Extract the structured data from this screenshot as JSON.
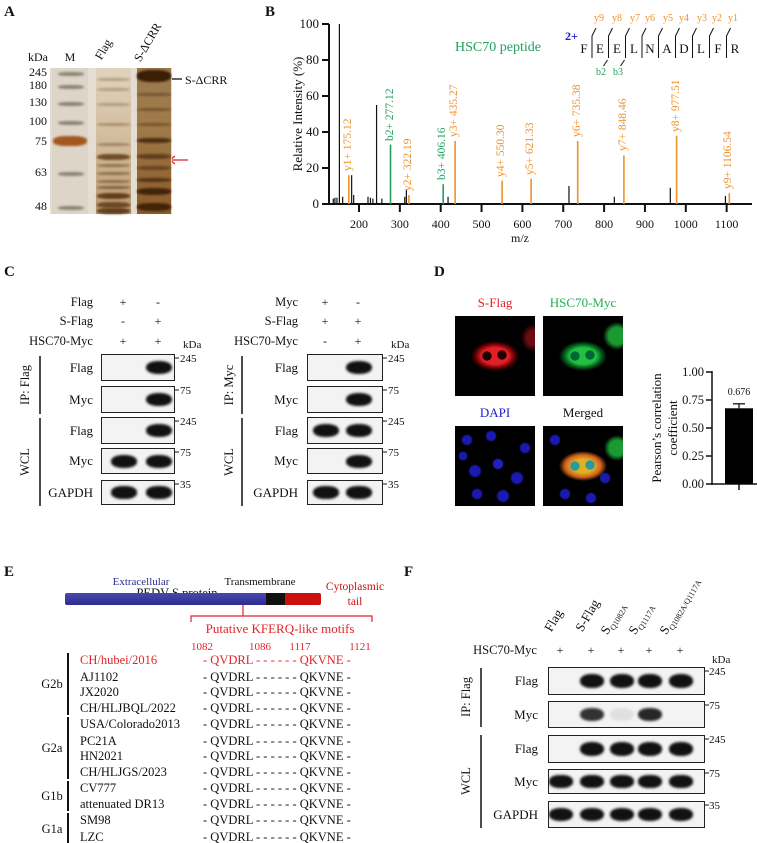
{
  "panel_labels": {
    "a": "A",
    "b": "B",
    "c": "C",
    "d": "D",
    "e": "E",
    "f": "F"
  },
  "panel_a": {
    "kda_label": "kDa",
    "lanes": [
      "M",
      "Flag",
      "S-ΔCRR"
    ],
    "markers": [
      "245",
      "180",
      "130",
      "100",
      "75",
      "63",
      "48"
    ],
    "arrow_label": "S-ΔCRR",
    "arrow_color": "#111111",
    "candidate_arrow_color": "#e0242b"
  },
  "panel_b": {
    "peptide_title": "HSC70 peptide",
    "charge": "2+",
    "sequence": [
      "F",
      "E",
      "E",
      "L",
      "N",
      "A",
      "D",
      "L",
      "F",
      "R"
    ],
    "y_ions": [
      "y9",
      "y8",
      "y7",
      "y6",
      "y5",
      "y4",
      "y3",
      "y2",
      "y1"
    ],
    "b_ions": [
      "b2",
      "b3"
    ],
    "colors": {
      "y_ion": "#f0902a",
      "b_ion": "#20a060",
      "charge": "#1a1ad0",
      "title": "#20a060"
    }
  },
  "chart_data": [
    {
      "type": "bar",
      "subtype": "ms2-stick-spectrum",
      "title": "HSC70 peptide",
      "xlabel": "m/z",
      "ylabel": "Relative  Intensity (%)",
      "xlim": [
        130,
        1180
      ],
      "ylim": [
        0,
        100
      ],
      "xticks": [
        "200",
        "300",
        "400",
        "500",
        "600",
        "700",
        "800",
        "900",
        "1000",
        "1100"
      ],
      "yticks": [
        "0",
        "20",
        "40",
        "60",
        "80",
        "100"
      ],
      "annotated_peaks": [
        {
          "mz": 175.12,
          "intensity": 16,
          "ion": "y",
          "label": "y1+ 175.12"
        },
        {
          "mz": 277.12,
          "intensity": 33,
          "ion": "b",
          "label": "b2+ 277.12"
        },
        {
          "mz": 322.19,
          "intensity": 5,
          "ion": "y",
          "label": "y2+ 322.19"
        },
        {
          "mz": 406.16,
          "intensity": 11,
          "ion": "b",
          "label": "b3+ 406.16"
        },
        {
          "mz": 435.27,
          "intensity": 35,
          "ion": "y",
          "label": "y3+ 435.27"
        },
        {
          "mz": 550.3,
          "intensity": 13,
          "ion": "y",
          "label": "y4+ 550.30"
        },
        {
          "mz": 621.33,
          "intensity": 14,
          "ion": "y",
          "label": "y5+ 621.33"
        },
        {
          "mz": 735.38,
          "intensity": 35,
          "ion": "y",
          "label": "y6+ 735.38"
        },
        {
          "mz": 848.46,
          "intensity": 27,
          "ion": "y",
          "label": "y7+ 848.46"
        },
        {
          "mz": 977.51,
          "intensity": 38,
          "ion": "y",
          "label": "y8+ 977.51"
        },
        {
          "mz": 1106.54,
          "intensity": 6,
          "ion": "y",
          "label": "y9+ 1106.54"
        }
      ],
      "other_peaks": [
        {
          "mz": 137,
          "intensity": 3
        },
        {
          "mz": 141,
          "intensity": 3.5
        },
        {
          "mz": 146,
          "intensity": 3.5
        },
        {
          "mz": 152,
          "intensity": 100
        },
        {
          "mz": 160,
          "intensity": 4
        },
        {
          "mz": 182,
          "intensity": 16
        },
        {
          "mz": 187,
          "intensity": 5
        },
        {
          "mz": 222,
          "intensity": 4
        },
        {
          "mz": 228,
          "intensity": 3.5
        },
        {
          "mz": 234,
          "intensity": 3
        },
        {
          "mz": 243,
          "intensity": 55
        },
        {
          "mz": 256,
          "intensity": 3
        },
        {
          "mz": 312,
          "intensity": 4
        },
        {
          "mz": 316,
          "intensity": 8
        },
        {
          "mz": 418,
          "intensity": 4
        },
        {
          "mz": 714,
          "intensity": 10
        },
        {
          "mz": 825,
          "intensity": 4
        },
        {
          "mz": 962,
          "intensity": 9
        },
        {
          "mz": 1097,
          "intensity": 4.5
        }
      ],
      "grid": false
    },
    {
      "type": "bar",
      "title": "",
      "categories": [
        ""
      ],
      "values": [
        0.676
      ],
      "error": [
        0.04
      ],
      "data_labels": [
        "0.676"
      ],
      "xlabel": "",
      "ylabel": "Pearson’s correlation coefficient",
      "ylabel_lines": [
        "Pearson’s correlation",
        "coefficient"
      ],
      "ylim": [
        0,
        1
      ],
      "yticks": [
        "0.00",
        "0.25",
        "0.50",
        "0.75",
        "1.00"
      ],
      "grid": false
    }
  ],
  "panel_c": {
    "kda_label": "kDa",
    "left": {
      "conditions": [
        {
          "label": "Flag",
          "signs": [
            "+",
            "-"
          ]
        },
        {
          "label": "S-Flag",
          "signs": [
            "-",
            "+"
          ]
        },
        {
          "label": "HSC70-Myc",
          "signs": [
            "+",
            "+"
          ]
        }
      ],
      "groups": [
        {
          "label": "IP: Flag"
        },
        {
          "label": "WCL"
        }
      ],
      "rows": [
        {
          "label": "Flag",
          "marker": "245",
          "bands": [
            0,
            1
          ]
        },
        {
          "label": "Myc",
          "marker": "75",
          "bands": [
            0,
            1
          ]
        },
        {
          "label": "Flag",
          "marker": "245",
          "bands": [
            0,
            1
          ]
        },
        {
          "label": "Myc",
          "marker": "75",
          "bands": [
            1,
            1
          ]
        },
        {
          "label": "GAPDH",
          "marker": "35",
          "bands": [
            1,
            1
          ]
        }
      ]
    },
    "right": {
      "conditions": [
        {
          "label": "Myc",
          "signs": [
            "+",
            "-"
          ]
        },
        {
          "label": "S-Flag",
          "signs": [
            "+",
            "+"
          ]
        },
        {
          "label": "HSC70-Myc",
          "signs": [
            "-",
            "+"
          ]
        }
      ],
      "groups": [
        {
          "label": "IP: Myc"
        },
        {
          "label": "WCL"
        }
      ],
      "rows": [
        {
          "label": "Flag",
          "marker": "245",
          "bands": [
            0,
            1
          ]
        },
        {
          "label": "Myc",
          "marker": "75",
          "bands": [
            0,
            1
          ]
        },
        {
          "label": "Flag",
          "marker": "245",
          "bands": [
            1,
            1
          ]
        },
        {
          "label": "Myc",
          "marker": "75",
          "bands": [
            0,
            1
          ]
        },
        {
          "label": "GAPDH",
          "marker": "35",
          "bands": [
            1,
            1
          ]
        }
      ]
    }
  },
  "panel_d": {
    "images": [
      {
        "label": "S-Flag",
        "color": "#e0242b"
      },
      {
        "label": "HSC70-Myc",
        "color": "#20b050"
      },
      {
        "label": "DAPI",
        "color": "#2020d0"
      },
      {
        "label": "Merged",
        "color": "#111111"
      }
    ]
  },
  "panel_e": {
    "title": "PEDV S protein",
    "domains": [
      {
        "label": "Extracellular",
        "color": "#2d2d8f"
      },
      {
        "label": "Transmembrane",
        "color": "#111111"
      },
      {
        "label": "Cytoplasmic",
        "label2": "tail",
        "color": "#cc1010"
      }
    ],
    "motif_label": "Putative KFERQ-like motifs",
    "positions": [
      "1082",
      "1086",
      "1117",
      "1121"
    ],
    "groups": [
      {
        "label": "G2b",
        "count": 4
      },
      {
        "label": "G2a",
        "count": 4
      },
      {
        "label": "G1b",
        "count": 2
      },
      {
        "label": "G1a",
        "count": 2
      }
    ],
    "strains": [
      {
        "name": "CH/hubei/2016",
        "seq": "- QVDRL - - - - - - QKVNE -",
        "highlight": true
      },
      {
        "name": "AJ1102",
        "seq": "- QVDRL - - - - - - QKVNE -"
      },
      {
        "name": "JX2020",
        "seq": "- QVDRL - - - - - - QKVNE -"
      },
      {
        "name": "CH/HLJBQL/2022",
        "seq": "- QVDRL - - - - - - QKVNE -"
      },
      {
        "name": "USA/Colorado2013",
        "seq": "- QVDRL - - - - - - QKVNE -"
      },
      {
        "name": "PC21A",
        "seq": "- QVDRL - - - - - - QKVNE -"
      },
      {
        "name": "HN2021",
        "seq": "- QVDRL - - - - - - QKVNE -"
      },
      {
        "name": "CH/HLJGS/2023",
        "seq": "- QVDRL - - - - - - QKVNE -"
      },
      {
        "name": "CV777",
        "seq": "- QVDRL - - - - - - QKVNE -"
      },
      {
        "name": "attenuated DR13",
        "seq": "- QVDRL - - - - - - QKVNE -"
      },
      {
        "name": "SM98",
        "seq": "- QVDRL - - - - - - QKVNE -"
      },
      {
        "name": "LZC",
        "seq": "- QVDRL - - - - - - QKVNE -"
      }
    ],
    "highlight_color": "#e0242b"
  },
  "panel_f": {
    "kda_label": "kDa",
    "columns": [
      {
        "main": "Flag",
        "sub": ""
      },
      {
        "main": "S-Flag",
        "sub": ""
      },
      {
        "main": "S",
        "sub": "Q1082A"
      },
      {
        "main": "S",
        "sub": "Q1117A"
      },
      {
        "main": "S",
        "sub": "Q1082A/Q1117A"
      }
    ],
    "condition": {
      "label": "HSC70-Myc",
      "signs": [
        "+",
        "+",
        "+",
        "+",
        "+"
      ]
    },
    "groups": [
      {
        "label": "IP: Flag"
      },
      {
        "label": "WCL"
      }
    ],
    "rows": [
      {
        "label": "Flag",
        "marker": "245",
        "bands": [
          0,
          1,
          1,
          1,
          1
        ]
      },
      {
        "label": "Myc",
        "marker": "75",
        "bands": [
          0,
          0.85,
          0.08,
          0.9,
          0
        ]
      },
      {
        "label": "Flag",
        "marker": "245",
        "bands": [
          0,
          1,
          1,
          1,
          1
        ]
      },
      {
        "label": "Myc",
        "marker": "75",
        "bands": [
          1,
          1,
          1,
          1,
          1
        ]
      },
      {
        "label": "GAPDH",
        "marker": "35",
        "bands": [
          1,
          1,
          1,
          1,
          1
        ]
      }
    ]
  }
}
